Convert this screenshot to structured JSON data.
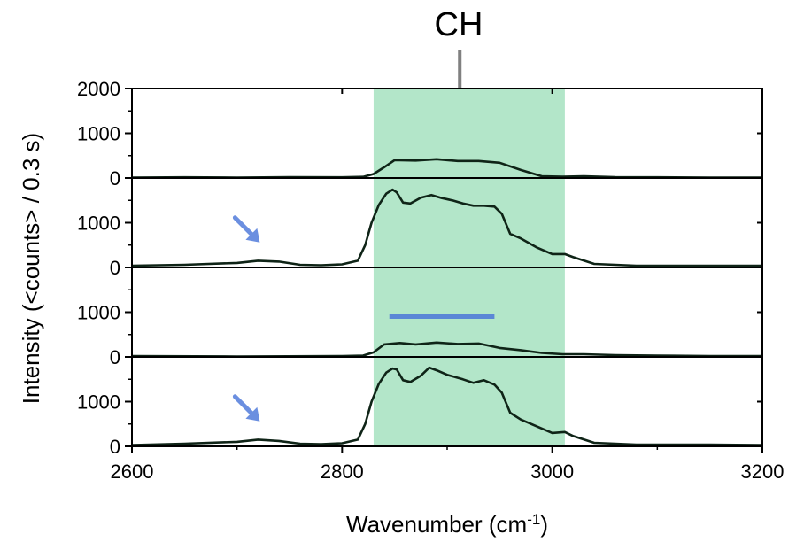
{
  "chart_data": {
    "type": "line",
    "xlabel_main": "Wavenumber (cm",
    "xlabel_sup": "-1",
    "xlabel_close": ")",
    "ylabel": "Intensity (<counts> / 0.3 s)",
    "xlim": [
      2600,
      3200
    ],
    "xticks": [
      2600,
      2800,
      3000,
      3200
    ],
    "x_tick_labels": [
      "2600",
      "2800",
      "3000",
      "3200"
    ],
    "grid": false,
    "band": {
      "label": "CH",
      "x_range": [
        2830,
        3012
      ],
      "color": "#b3e6c9"
    },
    "label_marker_x": 2912,
    "line_color": "#0f2417",
    "arrow_color": "#6b8fe0",
    "bar_color": "#5b87d6",
    "panels": [
      {
        "ylim": [
          0,
          2000
        ],
        "yticks": [
          0,
          1000,
          2000
        ],
        "y_tick_labels": [
          "0",
          "1000",
          "2000"
        ],
        "series": [
          {
            "x": [
              2600,
              2650,
              2700,
              2750,
              2800,
              2820,
              2830,
              2840,
              2850,
              2870,
              2890,
              2910,
              2930,
              2950,
              2970,
              2990,
              3010,
              3030,
              3060,
              3100,
              3150,
              3200
            ],
            "y": [
              10,
              15,
              10,
              20,
              15,
              25,
              90,
              240,
              400,
              390,
              420,
              380,
              380,
              340,
              180,
              40,
              30,
              40,
              20,
              15,
              10,
              10
            ]
          }
        ],
        "annotations": []
      },
      {
        "ylim": [
          0,
          2000
        ],
        "yticks": [
          0,
          1000
        ],
        "y_tick_labels": [
          "0",
          "1000"
        ],
        "series": [
          {
            "x": [
              2600,
              2650,
              2700,
              2720,
              2740,
              2760,
              2780,
              2800,
              2815,
              2822,
              2828,
              2835,
              2842,
              2848,
              2852,
              2858,
              2865,
              2875,
              2885,
              2895,
              2905,
              2915,
              2925,
              2935,
              2945,
              2952,
              2960,
              2970,
              2985,
              3000,
              3012,
              3020,
              3040,
              3080,
              3150,
              3200
            ],
            "y": [
              40,
              60,
              100,
              150,
              130,
              60,
              50,
              70,
              150,
              500,
              1000,
              1400,
              1650,
              1740,
              1680,
              1450,
              1430,
              1560,
              1620,
              1550,
              1500,
              1430,
              1380,
              1380,
              1360,
              1200,
              750,
              650,
              450,
              300,
              300,
              230,
              80,
              40,
              40,
              40
            ]
          }
        ],
        "annotations": [
          {
            "type": "arrow",
            "at": [
              2720,
              400
            ]
          }
        ]
      },
      {
        "ylim": [
          0,
          2000
        ],
        "yticks": [
          0,
          1000
        ],
        "y_tick_labels": [
          "0",
          "1000"
        ],
        "series": [
          {
            "x": [
              2600,
              2700,
              2800,
              2820,
              2830,
              2840,
              2855,
              2870,
              2890,
              2910,
              2930,
              2950,
              2970,
              2990,
              3010,
              3030,
              3060,
              3100,
              3150,
              3200
            ],
            "y": [
              20,
              10,
              20,
              30,
              100,
              280,
              310,
              280,
              320,
              290,
              300,
              200,
              150,
              90,
              60,
              60,
              40,
              30,
              20,
              20
            ]
          }
        ],
        "annotations": [
          {
            "type": "bar",
            "x_range": [
              2845,
              2945
            ],
            "y": 900
          }
        ]
      },
      {
        "ylim": [
          0,
          2000
        ],
        "yticks": [
          0,
          1000
        ],
        "y_tick_labels": [
          "0",
          "1000"
        ],
        "series": [
          {
            "x": [
              2600,
              2650,
              2700,
              2720,
              2740,
              2760,
              2780,
              2800,
              2815,
              2822,
              2828,
              2835,
              2842,
              2848,
              2852,
              2858,
              2865,
              2875,
              2883,
              2890,
              2900,
              2915,
              2925,
              2935,
              2945,
              2952,
              2960,
              2970,
              2985,
              3000,
              3012,
              3020,
              3040,
              3080,
              3150,
              3200
            ],
            "y": [
              30,
              60,
              100,
              150,
              120,
              60,
              50,
              70,
              150,
              500,
              1000,
              1400,
              1650,
              1740,
              1720,
              1480,
              1440,
              1580,
              1760,
              1700,
              1600,
              1500,
              1420,
              1480,
              1380,
              1200,
              750,
              600,
              450,
              300,
              320,
              230,
              80,
              40,
              40,
              30
            ]
          }
        ],
        "annotations": [
          {
            "type": "arrow",
            "at": [
              2720,
              400
            ]
          }
        ]
      }
    ]
  }
}
